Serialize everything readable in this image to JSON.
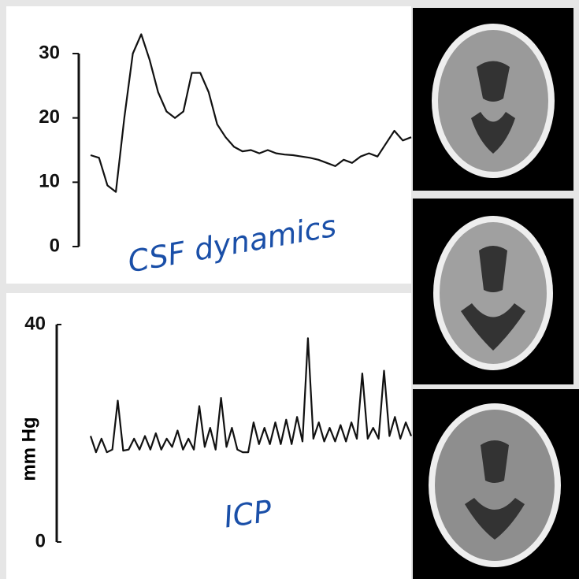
{
  "chart_data": [
    {
      "type": "line",
      "annotation": "CSF dynamics",
      "color": "#111111",
      "ylim": [
        0,
        30
      ],
      "yticks": [
        0,
        10,
        20,
        30
      ],
      "values": [
        14.2,
        13.8,
        9.5,
        8.5,
        20,
        30,
        33,
        29,
        24,
        21,
        20,
        21,
        27,
        27,
        24,
        19,
        17,
        15.5,
        14.8,
        15,
        14.5,
        15,
        14.5,
        14.3,
        14.2,
        14,
        13.8,
        13.5,
        13,
        12.5,
        13.5,
        13,
        14,
        14.5,
        14,
        16,
        18,
        16.5,
        17
      ]
    },
    {
      "type": "line",
      "annotation": "ICP",
      "ylabel": "mm Hg",
      "color": "#111111",
      "ylim": [
        0,
        40
      ],
      "yticks": [
        0,
        40
      ],
      "values": [
        19.5,
        16.5,
        19,
        16.5,
        17,
        26,
        16.8,
        17,
        19,
        17,
        19.5,
        17,
        20,
        17,
        19,
        17.5,
        20.5,
        17,
        19,
        17,
        25,
        17.5,
        21,
        17,
        26.5,
        17.5,
        21,
        17,
        16.5,
        16.5,
        22,
        18,
        21,
        18,
        22,
        18,
        22.5,
        18,
        23,
        18.5,
        37.5,
        19,
        22,
        18.5,
        21,
        18.5,
        21.5,
        18.5,
        22,
        19,
        31,
        19,
        21,
        19,
        31.5,
        19.5,
        23,
        19,
        22,
        19.5
      ]
    }
  ]
}
